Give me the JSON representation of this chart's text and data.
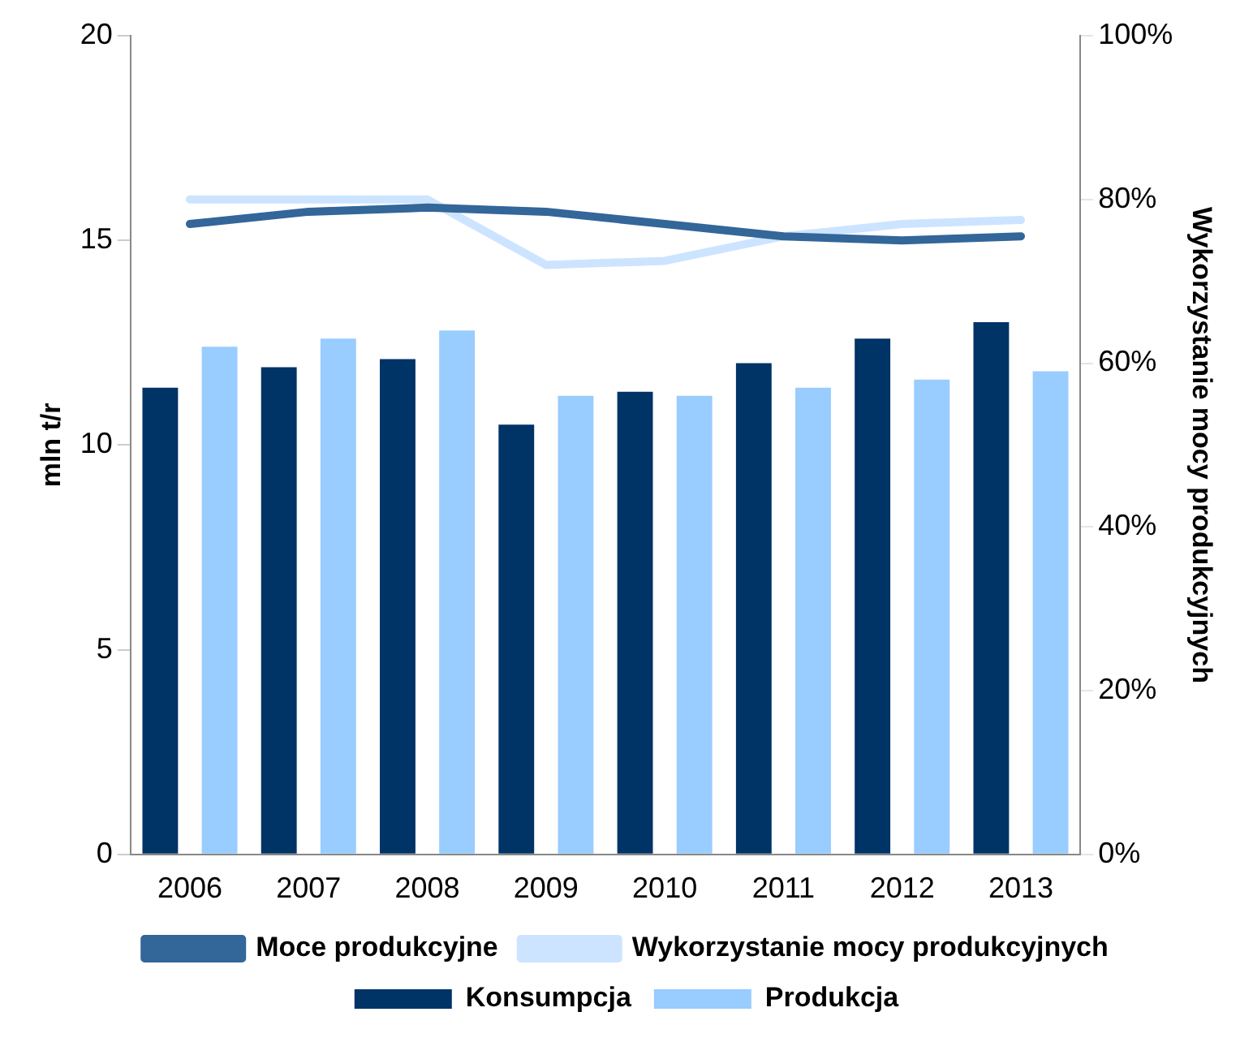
{
  "chart_data": {
    "type": "bar",
    "categories": [
      "2006",
      "2007",
      "2008",
      "2009",
      "2010",
      "2011",
      "2012",
      "2013"
    ],
    "ylabel": "mln t/r",
    "y2label": "Wykorzystanie mocy produkcyjnych",
    "series": [
      {
        "name": "Konsumpcja",
        "color": "#003366",
        "values": [
          11.4,
          11.9,
          12.1,
          10.5,
          11.3,
          12.0,
          12.6,
          13.0
        ]
      },
      {
        "name": "Produkcja",
        "color": "#99ccff",
        "values": [
          12.4,
          12.6,
          12.8,
          11.2,
          11.2,
          11.4,
          11.6,
          11.8
        ]
      },
      {
        "name": "Moce produkcyjne",
        "type": "line",
        "color": "#336699",
        "values": [
          15.4,
          15.7,
          15.8,
          15.7,
          15.4,
          15.1,
          15.0,
          15.1
        ]
      },
      {
        "name": "Wykorzystanie mocy produkcyjnych",
        "type": "line",
        "axis": "y2",
        "color": "#cce4ff",
        "values": [
          80,
          80,
          80,
          72,
          72.5,
          75.5,
          77,
          77.5
        ]
      }
    ],
    "ylim": [
      0,
      20
    ],
    "yticks": [
      0,
      5,
      10,
      15,
      20
    ],
    "y2lim": [
      0,
      100
    ],
    "y2ticks": [
      {
        "value": 0,
        "label": "0%"
      },
      {
        "value": 20,
        "label": "20%"
      },
      {
        "value": 40,
        "label": "40%"
      },
      {
        "value": 60,
        "label": "60%"
      },
      {
        "value": 80,
        "label": "80%"
      },
      {
        "value": 100,
        "label": "100%"
      }
    ],
    "grid": false,
    "legend": "bottom",
    "marker": "none"
  }
}
